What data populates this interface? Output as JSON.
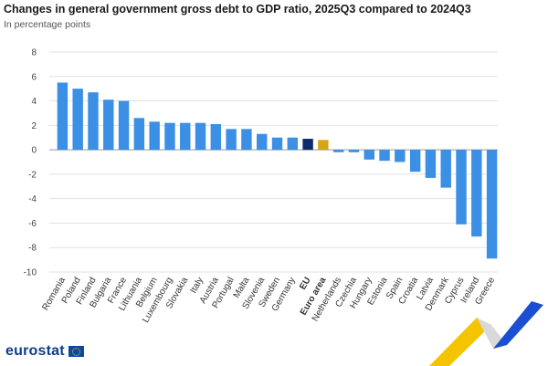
{
  "header": {
    "title": "Changes in general government gross debt to GDP ratio, 2025Q3 compared to 2024Q3",
    "subtitle": "In percentage points"
  },
  "brand": {
    "logo_text": "eurostat",
    "flag_icon": "eu-flag-icon"
  },
  "colors": {
    "country": "#3b8fe5",
    "eu": "#0e2a6b",
    "euro_area": "#d4a514",
    "grid": "#e2e2e2",
    "zero_line": "#999999",
    "deco_yellow": "#f5c400",
    "deco_blue": "#1a4fd1"
  },
  "chart_data": {
    "type": "bar",
    "title": "Changes in general government gross debt to GDP ratio, 2025Q3 compared to 2024Q3",
    "subtitle": "In percentage points",
    "categories": [
      "Romania",
      "Poland",
      "Finland",
      "Bulgaria",
      "France",
      "Lithuania",
      "Belgium",
      "Luxembourg",
      "Slovakia",
      "Italy",
      "Austria",
      "Portugal",
      "Malta",
      "Slovenia",
      "Sweden",
      "Germany",
      "EU",
      "Euro area",
      "Netherlands",
      "Czechia",
      "Hungary",
      "Estonia",
      "Spain",
      "Croatia",
      "Latvia",
      "Denmark",
      "Cyprus",
      "Ireland",
      "Greece"
    ],
    "values": [
      5.5,
      5.0,
      4.7,
      4.1,
      4.0,
      2.6,
      2.3,
      2.2,
      2.2,
      2.2,
      2.1,
      1.7,
      1.7,
      1.3,
      1.0,
      1.0,
      0.9,
      0.8,
      -0.2,
      -0.2,
      -0.8,
      -0.9,
      -1.0,
      -1.8,
      -2.3,
      -3.1,
      -6.1,
      -7.1,
      -8.9
    ],
    "highlight": {
      "EU": "eu",
      "Euro area": "euro_area"
    },
    "bold_categories": [
      "EU",
      "Euro area"
    ],
    "yticks": [
      8,
      6,
      4,
      2,
      0,
      -2,
      -4,
      -6,
      -8,
      -10
    ],
    "ylim": [
      -10,
      8
    ],
    "grid": true,
    "legend": "none"
  }
}
